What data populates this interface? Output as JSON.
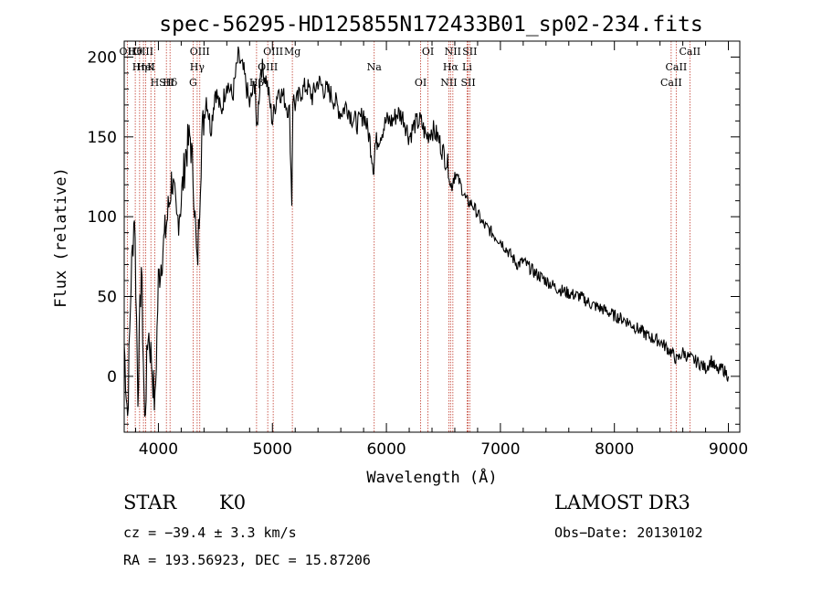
{
  "chart_data": {
    "type": "line",
    "title": "spec-56295-HD125855N172433B01_sp02-234.fits",
    "xlabel": "Wavelength (Å)",
    "ylabel": "Flux (relative)",
    "xlim": [
      3700,
      9100
    ],
    "ylim": [
      -35,
      210
    ],
    "xticks": [
      4000,
      5000,
      6000,
      7000,
      8000,
      9000
    ],
    "yticks": [
      0,
      50,
      100,
      150,
      200
    ],
    "series": [
      {
        "name": "flux",
        "x": [
          3700,
          3730,
          3760,
          3790,
          3820,
          3850,
          3880,
          3910,
          3940,
          3970,
          4000,
          4040,
          4080,
          4120,
          4160,
          4200,
          4240,
          4280,
          4310,
          4340,
          4380,
          4420,
          4460,
          4500,
          4550,
          4600,
          4650,
          4700,
          4750,
          4800,
          4850,
          4860,
          4900,
          4950,
          5000,
          5050,
          5100,
          5150,
          5170,
          5180,
          5200,
          5250,
          5300,
          5350,
          5400,
          5450,
          5500,
          5550,
          5600,
          5650,
          5700,
          5750,
          5800,
          5850,
          5890,
          5900,
          5950,
          6000,
          6050,
          6100,
          6150,
          6200,
          6250,
          6300,
          6350,
          6400,
          6450,
          6500,
          6550,
          6563,
          6600,
          6650,
          6700,
          6750,
          6800,
          6850,
          6900,
          6950,
          7000,
          7050,
          7100,
          7150,
          7200,
          7300,
          7400,
          7500,
          7600,
          7700,
          7800,
          7900,
          8000,
          8100,
          8200,
          8300,
          8400,
          8500,
          8550,
          8600,
          8650,
          8700,
          8750,
          8800,
          8850,
          8900,
          8950,
          9000
        ],
        "y": [
          20,
          -25,
          60,
          105,
          -10,
          70,
          -30,
          30,
          10,
          -20,
          60,
          80,
          100,
          125,
          95,
          110,
          140,
          150,
          120,
          65,
          150,
          175,
          155,
          180,
          165,
          185,
          175,
          200,
          190,
          170,
          185,
          150,
          195,
          185,
          160,
          180,
          175,
          165,
          110,
          175,
          170,
          178,
          182,
          175,
          185,
          180,
          178,
          172,
          165,
          170,
          162,
          158,
          165,
          150,
          130,
          145,
          152,
          160,
          160,
          165,
          162,
          150,
          158,
          160,
          150,
          155,
          150,
          140,
          130,
          118,
          128,
          120,
          110,
          108,
          102,
          95,
          92,
          88,
          85,
          80,
          75,
          70,
          72,
          65,
          60,
          55,
          52,
          50,
          45,
          42,
          38,
          35,
          30,
          25,
          22,
          15,
          10,
          15,
          12,
          10,
          8,
          5,
          10,
          3,
          5,
          0
        ]
      }
    ],
    "lines": [
      {
        "label": "Hθ",
        "wl": 3797
      },
      {
        "label": "K",
        "wl": 3934
      },
      {
        "label": "Hδ",
        "wl": 4102
      },
      {
        "label": "OII",
        "wl": 3727
      },
      {
        "label": "HeI",
        "wl": 3889
      },
      {
        "label": "SII",
        "wl": 4070
      },
      {
        "label": "OIII",
        "wl": 3869
      },
      {
        "label": "Hη",
        "wl": 3835
      },
      {
        "label": "H",
        "wl": 3968
      },
      {
        "label": "OIII",
        "wl": 4363
      },
      {
        "label": "Hγ",
        "wl": 4340
      },
      {
        "label": "G",
        "wl": 4304
      },
      {
        "label": "OIII",
        "wl": 5007
      },
      {
        "label": "OIII",
        "wl": 4959
      },
      {
        "label": "Hβ",
        "wl": 4861
      },
      {
        "label": "Mg",
        "wl": 5175
      },
      {
        "label": "Na",
        "wl": 5893
      },
      {
        "label": "OI",
        "wl": 6300
      },
      {
        "label": "OI",
        "wl": 6364
      },
      {
        "label": "Hα",
        "wl": 6563
      },
      {
        "label": "SII",
        "wl": 6717
      },
      {
        "label": "NII",
        "wl": 6583
      },
      {
        "label": "Li",
        "wl": 6708
      },
      {
        "label": "NII",
        "wl": 6548
      },
      {
        "label": "SII",
        "wl": 6731
      },
      {
        "label": "CaII",
        "wl": 8542
      },
      {
        "label": "CaII",
        "wl": 8498
      },
      {
        "label": "CaII",
        "wl": 8662
      }
    ]
  },
  "info": {
    "class_label": "STAR",
    "subclass": "K0",
    "survey": "LAMOST DR3",
    "cz": "cz = −39.4 ± 3.3 km/s",
    "obs_date": "Obs−Date: 20130102",
    "coords": "RA = 193.56923, DEC =  15.87206"
  }
}
